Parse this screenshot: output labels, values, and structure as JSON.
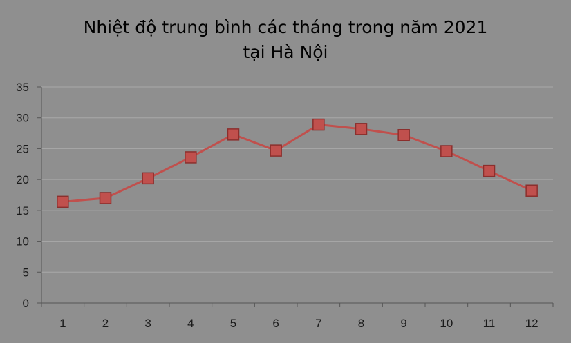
{
  "chart_data": {
    "type": "line",
    "title_line1": "Nhiệt độ trung bình các tháng trong năm 2021",
    "title_line2": "tại Hà Nội",
    "categories": [
      "1",
      "2",
      "3",
      "4",
      "5",
      "6",
      "7",
      "8",
      "9",
      "10",
      "11",
      "12"
    ],
    "series": [
      {
        "values": [
          16.4,
          17.0,
          20.2,
          23.6,
          27.3,
          24.7,
          28.9,
          28.2,
          27.2,
          24.6,
          21.4,
          18.2
        ]
      }
    ],
    "ylim": [
      0,
      35
    ],
    "yticks": [
      0,
      5,
      10,
      15,
      20,
      25,
      30,
      35
    ],
    "grid": true,
    "colors": {
      "line": "#c0504d",
      "marker_fill": "#c0504d",
      "marker_edge": "#8b2f2d",
      "grid": "#a9a9a9",
      "axis": "#555555"
    }
  }
}
